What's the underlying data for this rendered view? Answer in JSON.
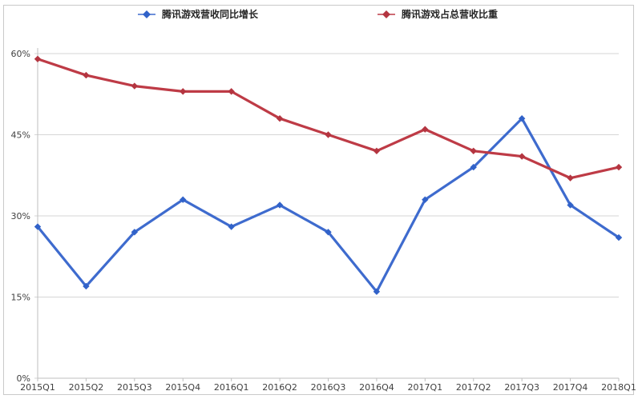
{
  "chart_data": {
    "type": "line",
    "title": "",
    "xlabel": "",
    "ylabel": "",
    "categories": [
      "2015Q1",
      "2015Q2",
      "2015Q3",
      "2015Q4",
      "2016Q1",
      "2016Q2",
      "2016Q3",
      "2016Q4",
      "2017Q1",
      "2017Q2",
      "2017Q3",
      "2017Q4",
      "2018Q1"
    ],
    "series": [
      {
        "name": "腾讯游戏营收同比增长",
        "color": "#3E6BCE",
        "marker_color": "#3162C9",
        "values": [
          28,
          17,
          27,
          33,
          28,
          32,
          27,
          16,
          33,
          39,
          48,
          32,
          26
        ]
      },
      {
        "name": "腾讯游戏占总营收比重",
        "color": "#BE3B46",
        "marker_color": "#B43540",
        "values": [
          59,
          56,
          54,
          53,
          53,
          48,
          45,
          42,
          46,
          42,
          41,
          37,
          39
        ]
      }
    ],
    "ylim": [
      0,
      60
    ],
    "ytick_step": 15,
    "ytick_labels": [
      "0%",
      "15%",
      "30%",
      "45%",
      "60%"
    ],
    "unit": "%",
    "grid": true,
    "marker": "diamond",
    "legend_position": "top"
  },
  "colors": {
    "background": "#FFFFFF",
    "frame_border": "#C9C9C9",
    "gridline": "#D6D6D6",
    "axis": "#BFBFBF",
    "tick_label": "#404040",
    "legend_text": "#262626"
  }
}
